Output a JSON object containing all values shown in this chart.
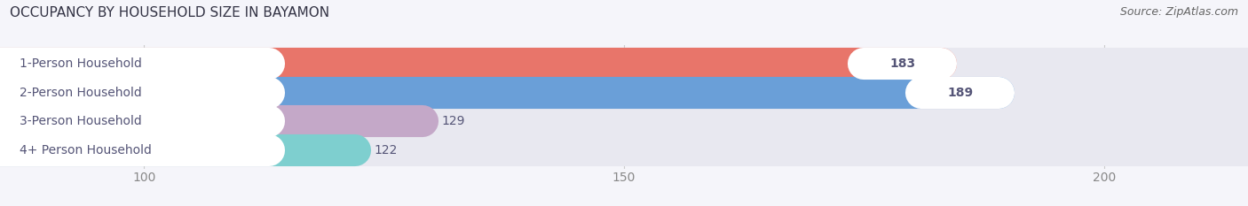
{
  "title": "OCCUPANCY BY HOUSEHOLD SIZE IN BAYAMON",
  "source": "Source: ZipAtlas.com",
  "categories": [
    "1-Person Household",
    "2-Person Household",
    "3-Person Household",
    "4+ Person Household"
  ],
  "values": [
    183,
    189,
    129,
    122
  ],
  "colors": [
    "#e8756a",
    "#6a9fd8",
    "#c4a8c8",
    "#7ecfcf"
  ],
  "bar_bg_color": "#e8e8f0",
  "xlim_min": 85,
  "xlim_max": 215,
  "xticks": [
    100,
    150,
    200
  ],
  "label_inside_threshold": 150,
  "title_fontsize": 11,
  "source_fontsize": 9,
  "tick_fontsize": 10,
  "bar_label_fontsize": 10,
  "category_label_fontsize": 10,
  "bar_height": 0.62,
  "figure_bg": "#f5f5fa",
  "white": "#ffffff"
}
